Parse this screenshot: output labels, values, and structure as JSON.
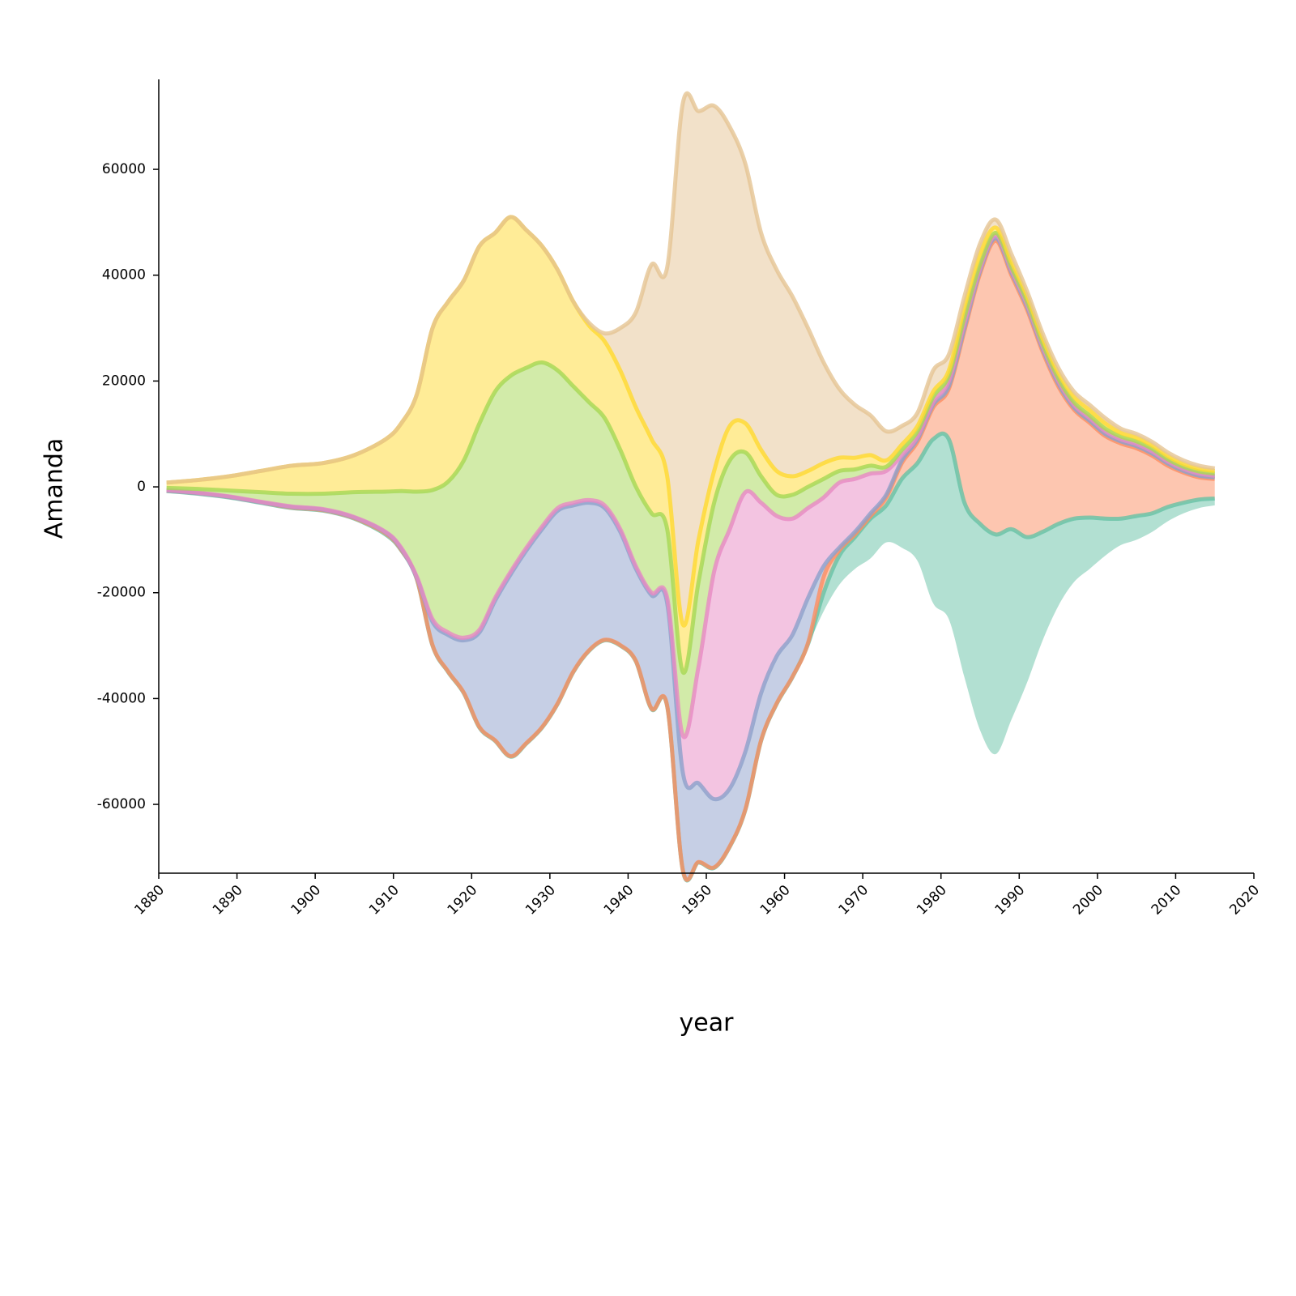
{
  "chart_data": {
    "type": "area",
    "offset": "silhouette",
    "xlabel": "year",
    "ylabel": "Amanda",
    "x": [
      1881,
      1885,
      1889,
      1893,
      1897,
      1901,
      1905,
      1909,
      1911,
      1913,
      1915,
      1917,
      1919,
      1921,
      1923,
      1925,
      1927,
      1929,
      1931,
      1933,
      1935,
      1937,
      1939,
      1941,
      1943,
      1945,
      1947,
      1949,
      1951,
      1953,
      1955,
      1957,
      1959,
      1961,
      1963,
      1965,
      1967,
      1969,
      1971,
      1973,
      1975,
      1977,
      1979,
      1981,
      1983,
      1985,
      1987,
      1989,
      1991,
      1993,
      1995,
      1997,
      1999,
      2001,
      2003,
      2005,
      2007,
      2009,
      2011,
      2013,
      2015
    ],
    "series": [
      {
        "color": "#66c2a5",
        "values": [
          0,
          0,
          0,
          0,
          0,
          0,
          0,
          0,
          0,
          0,
          0,
          0,
          0,
          0,
          0,
          0,
          0,
          0,
          0,
          0,
          0,
          0,
          0,
          0,
          0,
          0,
          0,
          0,
          0,
          0,
          0,
          0,
          0,
          0,
          300,
          3500,
          5500,
          6000,
          7500,
          7000,
          13000,
          18500,
          31000,
          34000,
          33000,
          39000,
          41500,
          36000,
          27500,
          20500,
          15500,
          12000,
          9700,
          7000,
          5000,
          4500,
          3500,
          2700,
          2000,
          1600,
          1300
        ]
      },
      {
        "color": "#fc8d62",
        "values": [
          100,
          100,
          100,
          100,
          100,
          100,
          100,
          200,
          100,
          100,
          100,
          100,
          100,
          100,
          100,
          100,
          100,
          100,
          100,
          100,
          100,
          100,
          100,
          100,
          100,
          100,
          100,
          100,
          100,
          100,
          100,
          100,
          100,
          100,
          200,
          3000,
          1000,
          500,
          500,
          1500,
          3000,
          4000,
          6000,
          9500,
          32500,
          47300,
          55500,
          48000,
          43000,
          34000,
          26000,
          20600,
          17900,
          15600,
          14200,
          12800,
          10900,
          7800,
          5700,
          4200,
          3700
        ]
      },
      {
        "color": "#8da0cb",
        "values": [
          0,
          0,
          0,
          0,
          100,
          100,
          100,
          200,
          200,
          200,
          4400,
          6900,
          9900,
          17900,
          26400,
          34400,
          36400,
          37400,
          36400,
          31400,
          27900,
          24900,
          21400,
          17400,
          21400,
          19400,
          18400,
          14900,
          12900,
          10900,
          10900,
          8900,
          8900,
          7900,
          8500,
          2000,
          500,
          500,
          500,
          500,
          500,
          500,
          500,
          500,
          500,
          500,
          500,
          500,
          500,
          500,
          500,
          400,
          400,
          400,
          400,
          400,
          400,
          400,
          300,
          300,
          300
        ]
      },
      {
        "color": "#e78ac3",
        "values": [
          100,
          100,
          100,
          100,
          100,
          100,
          100,
          100,
          200,
          200,
          500,
          500,
          500,
          500,
          500,
          500,
          500,
          500,
          500,
          500,
          500,
          500,
          500,
          500,
          500,
          1000,
          7000,
          22000,
          43000,
          49000,
          49000,
          36000,
          26500,
          22000,
          17000,
          13000,
          12300,
          10000,
          7500,
          4500,
          1000,
          500,
          500,
          1000,
          1000,
          500,
          500,
          500,
          500,
          500,
          500,
          500,
          500,
          500,
          400,
          400,
          400,
          400,
          400,
          400,
          300
        ]
      },
      {
        "color": "#a6d854",
        "values": [
          400,
          700,
          1100,
          1800,
          2400,
          2900,
          4700,
          7600,
          10700,
          16100,
          24400,
          28500,
          33500,
          39000,
          39000,
          37000,
          34000,
          31000,
          26000,
          22000,
          18500,
          16500,
          15000,
          15000,
          15000,
          13000,
          12000,
          16000,
          13000,
          13000,
          7500,
          5000,
          4000,
          4500,
          4000,
          3500,
          2200,
          1800,
          1500,
          800,
          1000,
          1000,
          1000,
          1000,
          1000,
          700,
          500,
          500,
          500,
          500,
          500,
          500,
          500,
          500,
          500,
          500,
          500,
          400,
          400,
          400,
          400
        ]
      },
      {
        "color": "#ffd92f",
        "values": [
          1000,
          1700,
          2700,
          4000,
          5300,
          5800,
          7000,
          9900,
          12800,
          18400,
          30600,
          34000,
          34000,
          33500,
          30000,
          30000,
          26000,
          22000,
          19000,
          16000,
          14500,
          14500,
          15000,
          15000,
          14000,
          10000,
          9000,
          8000,
          6000,
          6500,
          5500,
          5000,
          4500,
          3500,
          3000,
          3000,
          2500,
          2200,
          2000,
          1200,
          1000,
          1000,
          1000,
          1000,
          2000,
          2000,
          1000,
          1000,
          1000,
          1000,
          1000,
          1000,
          1000,
          1000,
          700,
          700,
          600,
          600,
          500,
          500,
          500
        ]
      },
      {
        "color": "#e5c494",
        "values": [
          0,
          0,
          0,
          0,
          0,
          0,
          0,
          0,
          0,
          0,
          0,
          0,
          0,
          0,
          0,
          0,
          0,
          0,
          0,
          0,
          500,
          1500,
          8000,
          18000,
          33000,
          39500,
          98500,
          81000,
          69000,
          56500,
          49000,
          41000,
          38000,
          34000,
          27000,
          19000,
          13000,
          10000,
          7500,
          5500,
          3500,
          2500,
          4000,
          3000,
          2000,
          2000,
          1500,
          1500,
          1000,
          1000,
          1000,
          1000,
          1000,
          1000,
          800,
          700,
          700,
          700,
          700,
          600,
          500
        ]
      }
    ],
    "xlim": [
      1880,
      2020
    ],
    "xticks": [
      1880,
      1890,
      1900,
      1910,
      1920,
      1930,
      1940,
      1950,
      1960,
      1970,
      1980,
      1990,
      2000,
      2010,
      2020
    ],
    "ylim": [
      -73000,
      77000
    ],
    "yticks": [
      -60000,
      -40000,
      -20000,
      0,
      20000,
      40000,
      60000
    ]
  }
}
